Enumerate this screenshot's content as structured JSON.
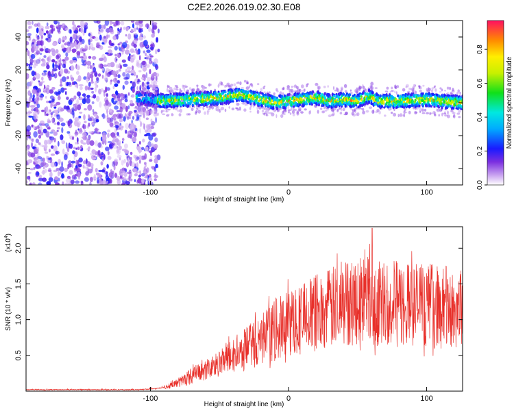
{
  "title": "C2E2.2026.019.02.30.E08",
  "colors": {
    "snr_line": "#e8302a",
    "axis": "#000000",
    "background": "#ffffff"
  },
  "chart_data": [
    {
      "type": "heatmap",
      "name": "spectrogram",
      "xlabel": "Height of straight line (km)",
      "ylabel": "Frequency (Hz)",
      "xlim": [
        -190,
        126
      ],
      "ylim": [
        -50,
        50
      ],
      "x_ticks": [
        -100,
        0,
        100
      ],
      "x_tick_labels": [
        "-100",
        "0",
        "100"
      ],
      "y_ticks": [
        -40,
        -20,
        0,
        20,
        40
      ],
      "y_tick_labels": [
        "-40",
        "-20",
        "0",
        "20",
        "40"
      ],
      "colorbar": {
        "label": "Normalized spectral amplitude",
        "range": [
          0,
          0.97
        ],
        "ticks": [
          0.0,
          0.2,
          0.4,
          0.6,
          0.8
        ],
        "tick_labels": [
          "0.0",
          "0.2",
          "0.4",
          "0.6",
          "0.8"
        ]
      },
      "noise_region_x": [
        -190,
        -100
      ],
      "signal_band": {
        "x_start": -110,
        "center_hz": 1.5,
        "half_width_hz": 4,
        "peak_amplitude": 0.95,
        "centerline": {
          "x": [
            -110,
            -90,
            -70,
            -50,
            -35,
            -20,
            -10,
            0,
            10,
            20,
            30,
            40,
            50,
            58,
            65,
            80,
            100,
            110,
            126
          ],
          "y": [
            3,
            1,
            2,
            3,
            5,
            2,
            0,
            1,
            2,
            3,
            1,
            2,
            1,
            4,
            1,
            1,
            2,
            1,
            0
          ]
        }
      }
    },
    {
      "type": "line",
      "name": "snr",
      "xlabel": "Height of straight line (km)",
      "ylabel": "SNR (10 * v/v)",
      "multiplier_label": "(x10",
      "multiplier_exponent": "4",
      "xlim": [
        -190,
        126
      ],
      "ylim": [
        0,
        2.3
      ],
      "x_ticks": [
        -100,
        0,
        100
      ],
      "x_tick_labels": [
        "-100",
        "0",
        "100"
      ],
      "y_ticks": [
        0.5,
        1.0,
        1.5,
        2.0
      ],
      "y_tick_labels": [
        "0.5",
        "1.0",
        "1.5",
        "2.0"
      ],
      "trend": {
        "x": [
          -190,
          -110,
          -100,
          -90,
          -80,
          -70,
          -60,
          -50,
          -40,
          -30,
          -20,
          -10,
          0,
          10,
          20,
          30,
          40,
          50,
          60,
          61,
          62,
          70,
          80,
          90,
          100,
          110,
          126
        ],
        "y": [
          0.02,
          0.02,
          0.03,
          0.05,
          0.12,
          0.22,
          0.3,
          0.38,
          0.5,
          0.6,
          0.72,
          0.85,
          0.95,
          1.02,
          1.1,
          1.15,
          1.22,
          1.28,
          1.35,
          1.4,
          1.2,
          1.25,
          1.2,
          1.22,
          1.2,
          1.18,
          1.15
        ]
      },
      "peak": {
        "x": 60.5,
        "y": 2.28
      }
    }
  ]
}
